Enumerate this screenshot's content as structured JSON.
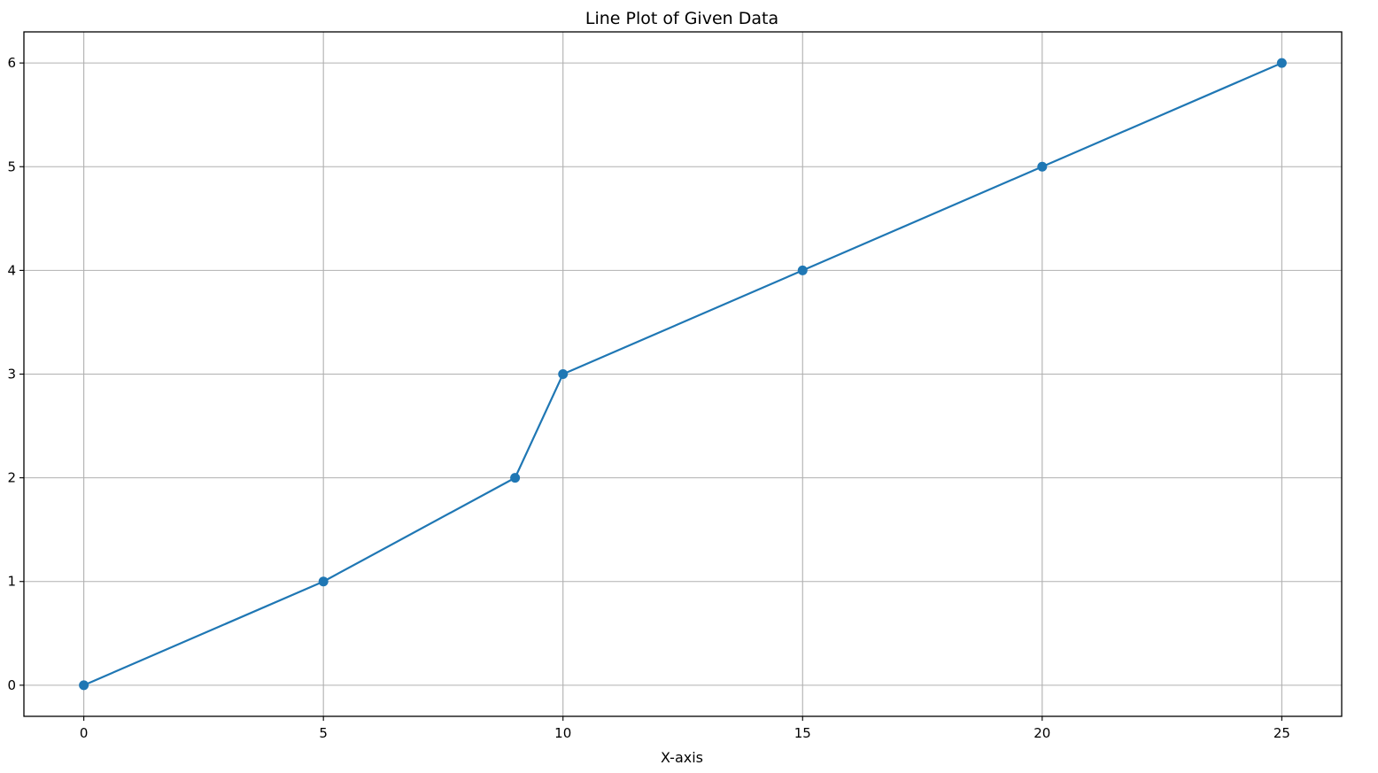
{
  "chart_data": {
    "type": "line",
    "title": "Line Plot of Given Data",
    "xlabel": "X-axis",
    "ylabel": "",
    "xlim": [
      -1.25,
      26.25
    ],
    "ylim": [
      -0.3,
      6.3
    ],
    "xticks": [
      0,
      5,
      10,
      15,
      20,
      25
    ],
    "yticks": [
      0,
      1,
      2,
      3,
      4,
      5,
      6
    ],
    "grid": true,
    "series": [
      {
        "x": [
          0,
          5,
          9,
          10,
          15,
          20,
          25
        ],
        "y": [
          0,
          1,
          2,
          3,
          4,
          5,
          6
        ],
        "color": "#1f77b4",
        "marker": "circle"
      }
    ]
  }
}
